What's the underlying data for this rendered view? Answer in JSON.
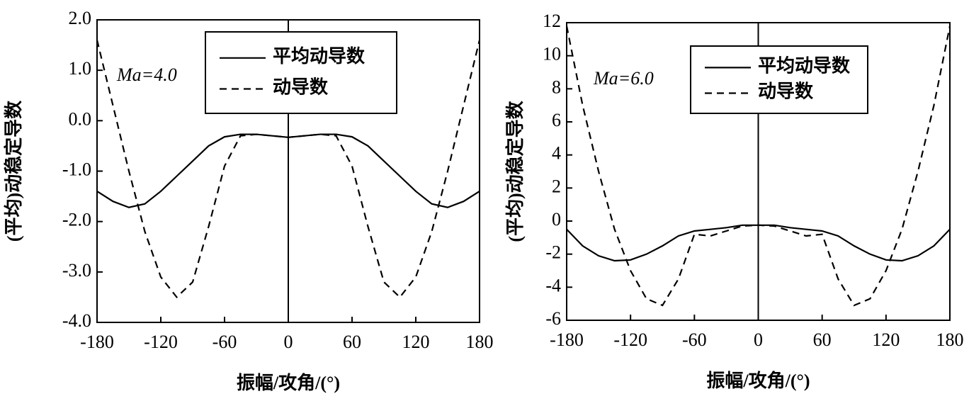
{
  "chart_data": [
    {
      "type": "line",
      "annotation": "Ma=4.0",
      "x_label": "振幅/攻角/(°)",
      "y_label": "(平均)动稳定导数",
      "x": [
        -180,
        -165,
        -150,
        -135,
        -120,
        -105,
        -90,
        -75,
        -60,
        -45,
        -30,
        -15,
        0,
        15,
        30,
        45,
        60,
        75,
        90,
        105,
        120,
        135,
        150,
        165,
        180
      ],
      "series": [
        {
          "name": "平均动导数",
          "color": "#000000",
          "line_style": "solid",
          "values": [
            -1.4,
            -1.6,
            -1.72,
            -1.65,
            -1.4,
            -1.1,
            -0.8,
            -0.5,
            -0.32,
            -0.27,
            -0.27,
            -0.3,
            -0.33,
            -0.3,
            -0.27,
            -0.27,
            -0.32,
            -0.5,
            -0.8,
            -1.1,
            -1.4,
            -1.65,
            -1.72,
            -1.6,
            -1.4
          ]
        },
        {
          "name": "动导数",
          "color": "#000000",
          "line_style": "dashed",
          "values": [
            1.6,
            0.3,
            -1.0,
            -2.2,
            -3.1,
            -3.5,
            -3.2,
            -2.1,
            -0.9,
            -0.3,
            -0.27,
            -0.3,
            -0.33,
            -0.3,
            -0.27,
            -0.3,
            -0.9,
            -2.1,
            -3.2,
            -3.5,
            -3.1,
            -2.2,
            -1.0,
            0.3,
            1.6
          ]
        }
      ],
      "xlim": [
        -180,
        180
      ],
      "xticks": [
        -180,
        -120,
        -60,
        0,
        60,
        120,
        180
      ],
      "ylim": [
        -4,
        2
      ],
      "yticks": [
        {
          "value": -4,
          "label": "-4.0"
        },
        {
          "value": -3,
          "label": "-3.0"
        },
        {
          "value": -2,
          "label": "-2.0"
        },
        {
          "value": -1,
          "label": "-1.0"
        },
        {
          "value": 0,
          "label": "0.0"
        },
        {
          "value": 1,
          "label": "1.0"
        },
        {
          "value": 2,
          "label": "2.0"
        }
      ],
      "legend": "top center"
    },
    {
      "type": "line",
      "annotation": "Ma=6.0",
      "x_label": "振幅/攻角/(°)",
      "y_label": "(平均)动稳定导数",
      "x": [
        -180,
        -165,
        -150,
        -135,
        -120,
        -105,
        -90,
        -75,
        -60,
        -45,
        -30,
        -15,
        0,
        15,
        30,
        45,
        60,
        75,
        90,
        105,
        120,
        135,
        150,
        165,
        180
      ],
      "series": [
        {
          "name": "平均动导数",
          "color": "#000000",
          "line_style": "solid",
          "values": [
            -0.5,
            -1.5,
            -2.1,
            -2.4,
            -2.35,
            -2.0,
            -1.5,
            -0.9,
            -0.6,
            -0.5,
            -0.4,
            -0.25,
            -0.25,
            -0.25,
            -0.4,
            -0.5,
            -0.6,
            -0.9,
            -1.5,
            -2.0,
            -2.35,
            -2.4,
            -2.1,
            -1.5,
            -0.5
          ]
        },
        {
          "name": "动导数",
          "color": "#000000",
          "line_style": "dashed",
          "values": [
            11.8,
            7,
            3,
            -0.5,
            -3.0,
            -4.7,
            -5.1,
            -3.5,
            -0.8,
            -0.9,
            -0.6,
            -0.3,
            -0.25,
            -0.3,
            -0.6,
            -0.9,
            -0.8,
            -3.5,
            -5.1,
            -4.7,
            -3.0,
            -0.5,
            3,
            7,
            11.8
          ]
        }
      ],
      "xlim": [
        -180,
        180
      ],
      "xticks": [
        -180,
        -120,
        -60,
        0,
        60,
        120,
        180
      ],
      "ylim": [
        -6,
        12
      ],
      "yticks": [
        -6,
        -4,
        -2,
        0,
        2,
        4,
        6,
        8,
        10,
        12
      ],
      "legend": "top center"
    }
  ]
}
